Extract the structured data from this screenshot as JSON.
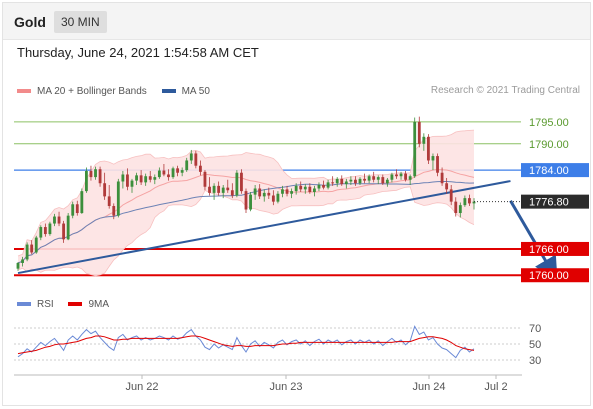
{
  "header": {
    "symbol": "Gold",
    "timeframe": "30 MIN",
    "datetime": "Thursday, June 24, 2021 1:54:58 AM CET"
  },
  "legend": {
    "items": [
      {
        "label": "MA 20 + Bollinger Bands",
        "color": "#f28b8b"
      },
      {
        "label": "MA 50",
        "color": "#2e5a9c"
      }
    ],
    "rsi_items": [
      {
        "label": "RSI",
        "color": "#6b8ad6"
      },
      {
        "label": "9MA",
        "color": "#e00000"
      }
    ]
  },
  "watermark": "Research © 2021 Trading Central",
  "colors": {
    "up": "#3c8f3c",
    "down": "#b03a3a",
    "band_fill": "#fde2e2",
    "ma20": "#f5a3a3",
    "ma50": "#2e5a9c",
    "resistance_green": "#8cc063",
    "pivot_blue": "#3d7ee8",
    "support_red": "#e00000",
    "trendline": "#2e5a9c",
    "arrow": "#2e5a9c"
  },
  "chart_data": [
    {
      "type": "candlestick",
      "title": "Gold",
      "timeframe": "30 MIN",
      "ylim": [
        1758,
        1800
      ],
      "x_ticks": [
        "Jun 22",
        "Jun 23",
        "Jun 24",
        "Jul 2"
      ],
      "right_axis_labels": [
        "1795.00",
        "1790.00",
        "1784.00",
        "1776.80",
        "1766.00",
        "1760.00"
      ],
      "levels": [
        {
          "value": 1795.0,
          "label": "1795.00",
          "kind": "resistance",
          "color": "#8cc063"
        },
        {
          "value": 1790.0,
          "label": "1790.00",
          "kind": "resistance",
          "color": "#8cc063"
        },
        {
          "value": 1784.0,
          "label": "1784.00",
          "kind": "pivot",
          "color": "#3d7ee8"
        },
        {
          "value": 1766.0,
          "label": "1766.00",
          "kind": "support",
          "color": "#e00000"
        },
        {
          "value": 1760.0,
          "label": "1760.00",
          "kind": "support",
          "color": "#e00000"
        }
      ],
      "last_price": {
        "value": 1776.8,
        "label": "1776.80"
      },
      "trendline": {
        "from": {
          "bar": 0,
          "price": 1760.5
        },
        "to": {
          "bar": 108,
          "price": 1781.5
        }
      },
      "projection_arrow": {
        "from": {
          "bar": 108,
          "price": 1777.0
        },
        "to": {
          "bar": 117,
          "price": 1761.0
        }
      },
      "bars": [
        [
          1761.5,
          1763.0,
          1761.0,
          1762.8
        ],
        [
          1762.8,
          1764.2,
          1762.0,
          1763.6
        ],
        [
          1763.6,
          1767.5,
          1763.2,
          1767.0
        ],
        [
          1767.0,
          1768.0,
          1764.8,
          1765.2
        ],
        [
          1765.2,
          1769.0,
          1764.9,
          1768.6
        ],
        [
          1768.6,
          1771.4,
          1768.0,
          1771.0
        ],
        [
          1771.0,
          1771.8,
          1768.8,
          1769.4
        ],
        [
          1769.4,
          1772.2,
          1769.0,
          1771.8
        ],
        [
          1771.8,
          1774.0,
          1771.2,
          1773.4
        ],
        [
          1773.4,
          1774.5,
          1771.2,
          1771.8
        ],
        [
          1771.8,
          1772.4,
          1767.4,
          1768.2
        ],
        [
          1768.2,
          1774.2,
          1768.0,
          1773.6
        ],
        [
          1773.6,
          1776.8,
          1773.0,
          1776.2
        ],
        [
          1776.2,
          1777.0,
          1773.6,
          1774.2
        ],
        [
          1774.2,
          1779.8,
          1774.0,
          1779.2
        ],
        [
          1779.2,
          1784.6,
          1778.8,
          1783.8
        ],
        [
          1783.8,
          1785.0,
          1781.6,
          1782.4
        ],
        [
          1782.4,
          1784.8,
          1781.8,
          1784.2
        ],
        [
          1784.2,
          1784.8,
          1780.2,
          1781.0
        ],
        [
          1781.0,
          1783.4,
          1777.2,
          1778.0
        ],
        [
          1778.0,
          1780.6,
          1775.2,
          1775.8
        ],
        [
          1775.8,
          1776.4,
          1772.8,
          1773.6
        ],
        [
          1773.6,
          1782.0,
          1773.2,
          1781.4
        ],
        [
          1781.4,
          1783.8,
          1779.8,
          1783.0
        ],
        [
          1783.0,
          1784.4,
          1779.4,
          1780.2
        ],
        [
          1780.2,
          1782.0,
          1778.8,
          1781.6
        ],
        [
          1781.6,
          1783.4,
          1780.6,
          1782.8
        ],
        [
          1782.8,
          1784.0,
          1780.6,
          1781.2
        ],
        [
          1781.2,
          1783.2,
          1780.4,
          1782.6
        ],
        [
          1782.6,
          1783.8,
          1781.2,
          1781.8
        ],
        [
          1781.8,
          1783.0,
          1780.8,
          1782.4
        ],
        [
          1782.4,
          1784.6,
          1782.0,
          1783.9
        ],
        [
          1783.9,
          1785.4,
          1782.6,
          1783.0
        ],
        [
          1783.0,
          1784.2,
          1781.6,
          1782.4
        ],
        [
          1782.4,
          1784.8,
          1782.0,
          1784.4
        ],
        [
          1784.4,
          1785.0,
          1782.6,
          1783.4
        ],
        [
          1783.4,
          1784.6,
          1782.6,
          1784.0
        ],
        [
          1784.0,
          1786.8,
          1783.6,
          1786.2
        ],
        [
          1786.2,
          1788.6,
          1785.4,
          1787.8
        ],
        [
          1787.8,
          1788.4,
          1784.4,
          1785.0
        ],
        [
          1785.0,
          1786.2,
          1782.8,
          1783.6
        ],
        [
          1783.6,
          1784.0,
          1779.4,
          1780.2
        ],
        [
          1780.2,
          1782.4,
          1778.2,
          1778.8
        ],
        [
          1778.8,
          1781.0,
          1777.2,
          1780.4
        ],
        [
          1780.4,
          1781.4,
          1778.2,
          1778.8
        ],
        [
          1778.8,
          1780.6,
          1777.6,
          1780.0
        ],
        [
          1780.0,
          1781.8,
          1778.8,
          1779.4
        ],
        [
          1779.4,
          1781.0,
          1777.6,
          1778.2
        ],
        [
          1778.2,
          1784.0,
          1777.8,
          1783.4
        ],
        [
          1783.4,
          1784.2,
          1778.6,
          1779.2
        ],
        [
          1779.2,
          1779.8,
          1774.2,
          1775.0
        ],
        [
          1775.0,
          1779.0,
          1774.6,
          1778.4
        ],
        [
          1778.4,
          1780.6,
          1777.2,
          1779.8
        ],
        [
          1779.8,
          1780.8,
          1777.4,
          1778.0
        ],
        [
          1778.0,
          1779.6,
          1776.8,
          1778.8
        ],
        [
          1778.8,
          1780.0,
          1777.4,
          1778.2
        ],
        [
          1778.2,
          1779.4,
          1776.0,
          1776.8
        ],
        [
          1776.8,
          1779.2,
          1776.4,
          1778.6
        ],
        [
          1778.6,
          1780.4,
          1777.8,
          1779.6
        ],
        [
          1779.6,
          1780.4,
          1778.0,
          1778.6
        ],
        [
          1778.6,
          1779.8,
          1777.6,
          1779.2
        ],
        [
          1779.2,
          1781.0,
          1778.4,
          1780.4
        ],
        [
          1780.4,
          1781.4,
          1779.0,
          1779.6
        ],
        [
          1779.6,
          1780.8,
          1778.6,
          1780.2
        ],
        [
          1780.2,
          1781.0,
          1778.6,
          1779.0
        ],
        [
          1779.0,
          1780.4,
          1778.0,
          1779.8
        ],
        [
          1779.8,
          1781.2,
          1779.2,
          1780.6
        ],
        [
          1780.6,
          1781.6,
          1779.6,
          1780.0
        ],
        [
          1780.0,
          1781.8,
          1779.6,
          1781.2
        ],
        [
          1781.2,
          1782.6,
          1780.4,
          1781.0
        ],
        [
          1781.0,
          1782.4,
          1780.2,
          1782.0
        ],
        [
          1782.0,
          1782.8,
          1780.4,
          1780.8
        ],
        [
          1780.8,
          1782.0,
          1779.8,
          1781.4
        ],
        [
          1781.4,
          1782.6,
          1780.6,
          1781.8
        ],
        [
          1781.8,
          1782.6,
          1780.4,
          1781.0
        ],
        [
          1781.0,
          1782.4,
          1780.6,
          1782.0
        ],
        [
          1782.0,
          1783.2,
          1781.0,
          1781.6
        ],
        [
          1781.6,
          1783.0,
          1781.0,
          1782.6
        ],
        [
          1782.6,
          1783.6,
          1781.2,
          1781.8
        ],
        [
          1781.8,
          1782.8,
          1780.8,
          1782.4
        ],
        [
          1782.4,
          1783.0,
          1780.6,
          1781.0
        ],
        [
          1781.0,
          1782.2,
          1780.2,
          1781.8
        ],
        [
          1781.8,
          1783.4,
          1781.2,
          1783.0
        ],
        [
          1783.0,
          1784.2,
          1782.0,
          1782.6
        ],
        [
          1782.6,
          1783.6,
          1781.8,
          1783.2
        ],
        [
          1783.2,
          1783.8,
          1781.4,
          1781.8
        ],
        [
          1781.8,
          1783.0,
          1780.6,
          1782.6
        ],
        [
          1782.6,
          1796.0,
          1782.2,
          1795.0
        ],
        [
          1795.0,
          1796.2,
          1789.2,
          1790.0
        ],
        [
          1790.0,
          1792.4,
          1788.4,
          1791.6
        ],
        [
          1791.6,
          1792.2,
          1785.4,
          1786.2
        ],
        [
          1786.2,
          1787.8,
          1784.0,
          1787.2
        ],
        [
          1787.2,
          1787.8,
          1782.6,
          1783.4
        ],
        [
          1783.4,
          1784.6,
          1780.4,
          1781.0
        ],
        [
          1781.0,
          1782.2,
          1778.6,
          1779.6
        ],
        [
          1779.6,
          1780.6,
          1776.0,
          1776.8
        ],
        [
          1776.8,
          1777.8,
          1773.4,
          1774.2
        ],
        [
          1774.2,
          1776.6,
          1773.2,
          1776.0
        ],
        [
          1776.0,
          1778.2,
          1775.6,
          1777.6
        ],
        [
          1777.6,
          1778.4,
          1775.8,
          1776.4
        ],
        [
          1776.4,
          1777.6,
          1775.0,
          1776.8
        ]
      ]
    },
    {
      "type": "line",
      "title": "RSI",
      "ylim": [
        20,
        80
      ],
      "y_ticks": [
        70,
        50,
        30
      ],
      "series": [
        {
          "name": "RSI",
          "color": "#6b8ad6",
          "values": [
            34,
            38,
            44,
            40,
            46,
            52,
            48,
            53,
            57,
            50,
            42,
            55,
            60,
            55,
            62,
            68,
            63,
            66,
            58,
            52,
            46,
            42,
            58,
            62,
            55,
            58,
            60,
            55,
            58,
            55,
            57,
            60,
            58,
            55,
            60,
            56,
            58,
            64,
            68,
            60,
            55,
            46,
            43,
            50,
            45,
            49,
            46,
            43,
            58,
            48,
            40,
            50,
            54,
            47,
            52,
            49,
            45,
            52,
            55,
            49,
            53,
            55,
            50,
            54,
            48,
            53,
            56,
            50,
            55,
            52,
            55,
            49,
            53,
            55,
            50,
            55,
            52,
            55,
            50,
            54,
            48,
            53,
            57,
            52,
            55,
            49,
            54,
            72,
            62,
            65,
            55,
            58,
            50,
            45,
            43,
            38,
            33,
            42,
            46,
            40,
            44
          ]
        },
        {
          "name": "9MA",
          "color": "#e00000",
          "values": [
            38,
            39,
            40,
            41,
            42,
            44,
            46,
            47,
            49,
            50,
            50,
            51,
            52,
            53,
            55,
            57,
            58,
            60,
            60,
            59,
            57,
            55,
            55,
            56,
            56,
            57,
            57,
            57,
            57,
            57,
            57,
            57,
            57,
            57,
            57,
            57,
            58,
            59,
            60,
            60,
            59,
            57,
            55,
            53,
            51,
            49,
            48,
            47,
            48,
            48,
            47,
            47,
            48,
            48,
            48,
            48,
            48,
            49,
            50,
            50,
            51,
            51,
            52,
            52,
            52,
            52,
            52,
            52,
            52,
            52,
            52,
            52,
            52,
            52,
            52,
            52,
            52,
            52,
            52,
            52,
            52,
            52,
            52,
            53,
            53,
            53,
            53,
            55,
            57,
            58,
            59,
            59,
            58,
            57,
            55,
            52,
            48,
            46,
            44,
            43,
            42
          ]
        }
      ]
    }
  ]
}
